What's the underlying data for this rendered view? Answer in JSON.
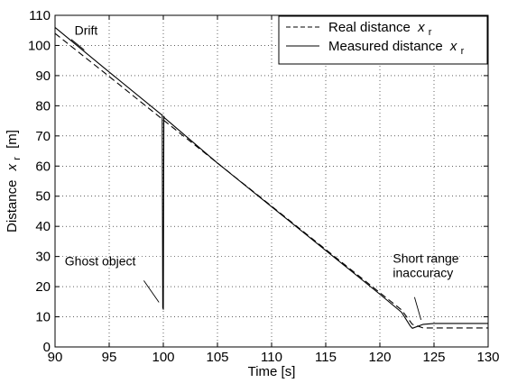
{
  "chart_data": {
    "type": "line",
    "xlabel": "Time [s]",
    "ylabel": "Distance",
    "ylabel_var": "x",
    "ylabel_sub": "r",
    "ylabel_unit": "[m]",
    "xlim": [
      90,
      130
    ],
    "ylim": [
      0,
      110
    ],
    "xticks": [
      90,
      95,
      100,
      105,
      110,
      115,
      120,
      125,
      130
    ],
    "yticks": [
      0,
      10,
      20,
      30,
      40,
      50,
      60,
      70,
      80,
      90,
      100,
      110
    ],
    "grid": true,
    "legend_position": "top-right",
    "series": [
      {
        "name": "Real distance",
        "name_var": "x",
        "name_sub": "r",
        "style": "dashed",
        "color": "#000000",
        "x": [
          90,
          95,
          100,
          105,
          110,
          115,
          120,
          122,
          123,
          124,
          125,
          130
        ],
        "y": [
          104,
          89.7,
          75.3,
          61,
          46.7,
          32.3,
          18,
          12.3,
          7.5,
          6.3,
          6.3,
          6.3
        ]
      },
      {
        "name": "Measured distance",
        "name_var": "x",
        "name_sub": "r",
        "style": "solid",
        "color": "#000000",
        "x": [
          90,
          95,
          99.85,
          99.9,
          99.95,
          100,
          100.05,
          100.1,
          105,
          110,
          115,
          120,
          122,
          122.8,
          123,
          124,
          125,
          130
        ],
        "y": [
          106,
          91.2,
          77,
          77,
          13,
          12.5,
          76.5,
          76,
          61,
          46.5,
          32,
          17.5,
          11.5,
          7,
          6.2,
          7.5,
          7.8,
          7.8
        ]
      }
    ],
    "annotations": [
      {
        "text": "Drift",
        "x": 91,
        "y": 101
      },
      {
        "text": "Ghost object",
        "x": 99.8,
        "y": 14
      },
      {
        "text": "Short range\ninaccuracy",
        "x": 123.6,
        "y": 8.5
      }
    ]
  }
}
